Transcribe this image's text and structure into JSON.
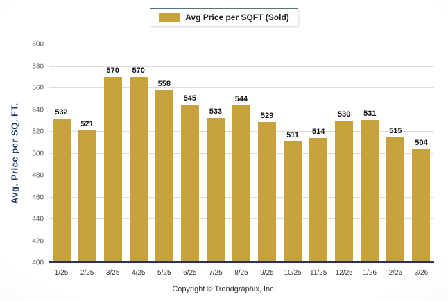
{
  "chart_data": {
    "type": "bar",
    "legend": "Avg Price per SQFT (Sold)",
    "ylabel": "Avg. Price per SQ. FT.",
    "footer": "Copyright © Trendgraphix, Inc.",
    "categories": [
      "1/25",
      "2/25",
      "3/25",
      "4/25",
      "5/25",
      "6/25",
      "7/25",
      "8/25",
      "9/25",
      "10/25",
      "11/25",
      "12/25",
      "1/26",
      "2/26",
      "3/26"
    ],
    "values": [
      532,
      521,
      570,
      570,
      558,
      545,
      533,
      544,
      529,
      511,
      514,
      530,
      531,
      515,
      504
    ],
    "ylim": [
      400,
      600
    ],
    "ytick_step": 20,
    "bar_color": "#C7A13C",
    "grid": true,
    "legend_position": "top"
  }
}
